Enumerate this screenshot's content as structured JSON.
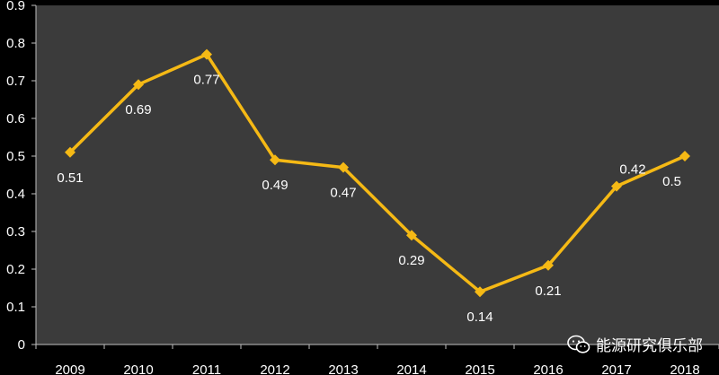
{
  "chart_data": {
    "type": "line",
    "categories": [
      "2009",
      "2010",
      "2011",
      "2012",
      "2013",
      "2014",
      "2015",
      "2016",
      "2017",
      "2018"
    ],
    "series": [
      {
        "values": [
          0.51,
          0.69,
          0.77,
          0.49,
          0.47,
          0.29,
          0.14,
          0.21,
          0.42,
          0.5
        ]
      }
    ],
    "data_labels": [
      "0.51",
      "0.69",
      "0.77",
      "0.49",
      "0.47",
      "0.29",
      "0.14",
      "0.21",
      "0.42",
      "0.5"
    ],
    "ylim": [
      0,
      0.9
    ],
    "yticks": [
      "0",
      "0.1",
      "0.2",
      "0.3",
      "0.4",
      "0.5",
      "0.6",
      "0.7",
      "0.8",
      "0.9"
    ],
    "title": "",
    "xlabel": "",
    "ylabel": "",
    "grid": false,
    "legend": "none",
    "colors": {
      "line": "#f5b915",
      "plot_background": "#3b3b3b",
      "background": "#000000",
      "text": "#ffffff"
    }
  },
  "watermark": {
    "text": "能源研究俱乐部",
    "icon": "wechat-icon"
  }
}
